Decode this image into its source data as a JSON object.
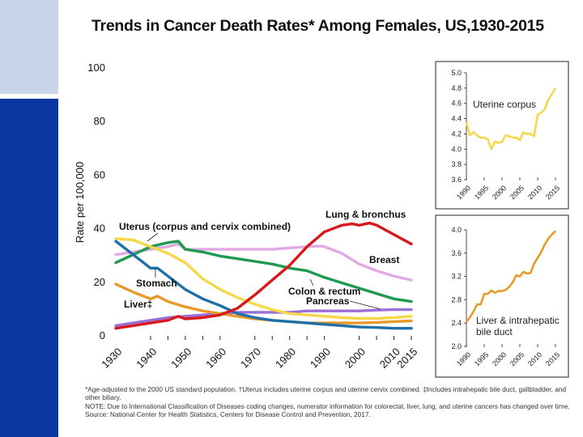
{
  "page": {
    "title": "Trends in Cancer Death Rates* Among Females, US,1930-2015",
    "accent_top": "#cad5e9",
    "accent_bottom": "#0a37a0"
  },
  "footnotes": [
    "*Age-adjusted to the 2000 US standard population. †Uterus includes uterine corpus and uterine cervix combined. ‡Includes intrahepatic bile duct, gallbladder, and other biliary.",
    "NOTE: Due to International Classification of Diseases coding changes, numerator information for colorectal, liver, lung, and uterine cancers has changed over time.",
    "Source:  National Center for Health Statistics, Centers for Disease Control and Prevention, 2017."
  ],
  "chart_data": [
    {
      "type": "line",
      "title": "Trends in Cancer Death Rates* Among Females, US,1930-2015",
      "xlabel": "",
      "ylabel": "Rate per 100,000",
      "xlim": [
        1930,
        2015
      ],
      "ylim": [
        0,
        100
      ],
      "yticks": [
        0,
        20,
        40,
        60,
        80,
        100
      ],
      "yticklabels": [
        "0",
        "20",
        "40",
        "60",
        "80",
        "100"
      ],
      "xticks": [
        1930,
        1940,
        1950,
        1960,
        1970,
        1980,
        1990,
        2000,
        2010,
        2015
      ],
      "xticklabels": [
        "1930",
        "1940",
        "1950",
        "1960",
        "1970",
        "1980",
        "1990",
        "2000",
        "2010",
        "2015"
      ],
      "grid": false,
      "series": [
        {
          "name": "Lung & bronchus",
          "label": "Lung & bronchus",
          "color": "#d7191c",
          "x": [
            1930,
            1935,
            1940,
            1945,
            1948,
            1950,
            1955,
            1960,
            1965,
            1970,
            1975,
            1980,
            1985,
            1990,
            1995,
            1998,
            2000,
            2003,
            2005,
            2010,
            2015
          ],
          "y": [
            2.5,
            3.5,
            4.5,
            5.5,
            7,
            6,
            6.5,
            7.5,
            10,
            15,
            20.5,
            26,
            33,
            38.5,
            41,
            41.5,
            41,
            41.8,
            41,
            37.5,
            34
          ]
        },
        {
          "name": "Breast",
          "label": "Breast",
          "color": "#e2a8e6",
          "x": [
            1930,
            1935,
            1940,
            1945,
            1948,
            1950,
            1955,
            1960,
            1965,
            1970,
            1975,
            1980,
            1985,
            1989,
            1990,
            1995,
            2000,
            2005,
            2010,
            2015
          ],
          "y": [
            30,
            31,
            32,
            33,
            34,
            32,
            32,
            32,
            32,
            32,
            32,
            32.5,
            33,
            33.2,
            33,
            30.5,
            26.5,
            24,
            22,
            20.5
          ]
        },
        {
          "name": "Colon & rectum",
          "label": "Colon & rectum",
          "color": "#1f9a4f",
          "x": [
            1930,
            1935,
            1940,
            1945,
            1948,
            1950,
            1955,
            1960,
            1965,
            1970,
            1975,
            1980,
            1985,
            1990,
            1995,
            2000,
            2005,
            2010,
            2015
          ],
          "y": [
            27,
            30,
            33,
            34.5,
            35,
            32,
            31,
            29.5,
            28.5,
            27.5,
            26.5,
            25,
            24,
            21.5,
            19.5,
            17.5,
            15.5,
            13.5,
            12.5
          ]
        },
        {
          "name": "Uterus (corpus and cervix combined)",
          "label": "Uterus (corpus and cervix combined)",
          "color": "#f6d84a",
          "x": [
            1930,
            1935,
            1940,
            1945,
            1950,
            1955,
            1960,
            1965,
            1970,
            1975,
            1980,
            1985,
            1990,
            1995,
            2000,
            2005,
            2010,
            2015
          ],
          "y": [
            36,
            35.5,
            33,
            30.5,
            27,
            21,
            17,
            14,
            11.5,
            9.5,
            8,
            7.5,
            7,
            6.5,
            6.2,
            6.2,
            6.5,
            7
          ]
        },
        {
          "name": "Stomach",
          "label": "Stomach",
          "color": "#1f6fa8",
          "x": [
            1930,
            1935,
            1940,
            1942,
            1945,
            1950,
            1955,
            1960,
            1965,
            1970,
            1975,
            1980,
            1985,
            1990,
            1995,
            2000,
            2005,
            2010,
            2015
          ],
          "y": [
            35,
            30,
            25,
            25,
            22,
            17,
            13.5,
            11,
            8,
            6.5,
            5.5,
            5,
            4.5,
            4,
            3.5,
            3,
            2.8,
            2.5,
            2.5
          ]
        },
        {
          "name": "Liver‡",
          "label": "Liver‡",
          "color": "#e79a2a",
          "x": [
            1930,
            1935,
            1940,
            1942,
            1945,
            1950,
            1955,
            1960,
            1965,
            1970,
            1975,
            1980,
            1985,
            1990,
            1995,
            2000,
            2005,
            2010,
            2015
          ],
          "y": [
            19,
            16,
            13.5,
            14.5,
            12.5,
            10.5,
            9,
            8,
            7,
            6,
            5.5,
            5,
            4.5,
            4.5,
            4.5,
            4.5,
            4.7,
            5,
            5.3
          ]
        },
        {
          "name": "Pancreas",
          "label": "Pancreas",
          "color": "#9b6fd8",
          "x": [
            1930,
            1935,
            1940,
            1945,
            1950,
            1955,
            1960,
            1965,
            1970,
            1975,
            1980,
            1985,
            1990,
            1995,
            2000,
            2005,
            2010,
            2015
          ],
          "y": [
            3.5,
            4.5,
            5.5,
            6.5,
            7,
            7.5,
            8,
            8.5,
            8.5,
            8.5,
            8.5,
            9,
            9,
            9,
            9,
            9.3,
            9.5,
            9.5
          ]
        }
      ]
    },
    {
      "type": "line",
      "title": "",
      "label": "Uterine corpus",
      "xlim": [
        1990,
        2015
      ],
      "ylim": [
        3.6,
        5.0
      ],
      "yticks": [
        3.6,
        3.8,
        4.0,
        4.2,
        4.4,
        4.6,
        4.8,
        5.0
      ],
      "yticklabels": [
        "3.6",
        "3.8",
        "4.0",
        "4.2",
        "4.4",
        "4.6",
        "4.8",
        "5.0"
      ],
      "xticks": [
        1990,
        1995,
        2000,
        2005,
        2010,
        2015
      ],
      "xticklabels": [
        "1990",
        "1995",
        "2000",
        "2005",
        "2010",
        "2015"
      ],
      "grid": false,
      "series": [
        {
          "name": "Uterine corpus",
          "color": "#f6d84a",
          "x": [
            1990,
            1991,
            1992,
            1993,
            1994,
            1995,
            1996,
            1997,
            1998,
            1999,
            2000,
            2001,
            2002,
            2003,
            2004,
            2005,
            2006,
            2007,
            2008,
            2009,
            2010,
            2011,
            2012,
            2013,
            2014,
            2015
          ],
          "y": [
            4.35,
            4.18,
            4.22,
            4.18,
            4.15,
            4.15,
            4.13,
            4.0,
            4.1,
            4.08,
            4.1,
            4.18,
            4.17,
            4.15,
            4.15,
            4.12,
            4.22,
            4.2,
            4.2,
            4.17,
            4.45,
            4.48,
            4.52,
            4.65,
            4.72,
            4.8
          ]
        }
      ]
    },
    {
      "type": "line",
      "title": "",
      "label": "Liver & intrahepatic bile duct",
      "xlim": [
        1990,
        2015
      ],
      "ylim": [
        2.0,
        4.0
      ],
      "yticks": [
        2.0,
        2.4,
        2.8,
        3.2,
        3.6,
        4.0
      ],
      "yticklabels": [
        "2.0",
        "2.4",
        "2.8",
        "3.2",
        "3.6",
        "4.0"
      ],
      "xticks": [
        1990,
        1995,
        2000,
        2005,
        2010,
        2015
      ],
      "xticklabels": [
        "1990",
        "1995",
        "2000",
        "2005",
        "2010",
        "2015"
      ],
      "grid": false,
      "series": [
        {
          "name": "Liver & intrahepatic bile duct",
          "color": "#e79a2a",
          "x": [
            1990,
            1991,
            1992,
            1993,
            1994,
            1995,
            1996,
            1997,
            1998,
            1999,
            2000,
            2001,
            2002,
            2003,
            2004,
            2005,
            2006,
            2007,
            2008,
            2009,
            2010,
            2011,
            2012,
            2013,
            2014,
            2015
          ],
          "y": [
            2.42,
            2.5,
            2.6,
            2.72,
            2.72,
            2.9,
            2.9,
            2.96,
            2.92,
            2.95,
            2.95,
            2.97,
            3.02,
            3.1,
            3.22,
            3.2,
            3.28,
            3.25,
            3.26,
            3.42,
            3.52,
            3.62,
            3.75,
            3.85,
            3.92,
            3.98
          ]
        }
      ]
    }
  ]
}
